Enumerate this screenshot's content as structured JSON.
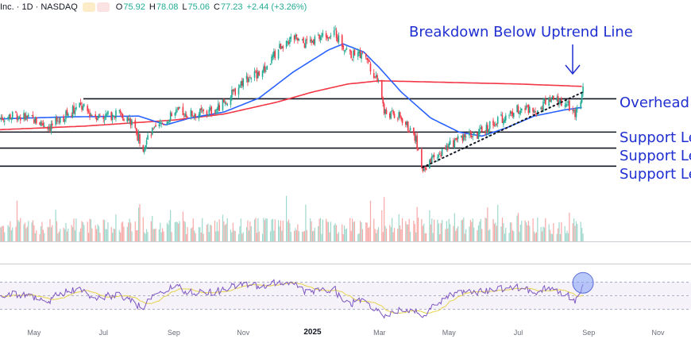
{
  "header": {
    "symbol": "Inc. · 1D · NASDAQ",
    "open_label": "O",
    "open": "75.92",
    "high_label": "H",
    "high": "78.08",
    "low_label": "L",
    "low": "75.06",
    "close_label": "C",
    "close": "77.23",
    "change": "+2.44 (+3.26%)"
  },
  "annotations": {
    "title": "Breakdown Below Uptrend Line",
    "overhead": "Overhead",
    "support1": "Support Le",
    "support2": "Support Le",
    "support3": "Support Le"
  },
  "colors": {
    "up": "#22ab94",
    "down": "#f23645",
    "ma_fast": "#2962ff",
    "ma_slow": "#f23645",
    "annotation": "#1f2fd1",
    "rsi": "#7e57c2",
    "rsi_ma": "#e6d34a",
    "volume_up": "#9fd8cc",
    "volume_down": "#f7a9a7"
  },
  "chart_data": {
    "type": "candlestick",
    "x_axis": {
      "ticks": [
        "May",
        "Jul",
        "Sep",
        "Nov",
        "2025",
        "Mar",
        "May",
        "Jul",
        "Sep",
        "Nov"
      ],
      "range": [
        "2024-04-01",
        "2025-11-30"
      ]
    },
    "price": {
      "ylim": [
        54,
        96
      ],
      "anchors": [
        [
          "2024-04-01",
          70.5
        ],
        [
          "2024-04-15",
          71.2
        ],
        [
          "2024-05-01",
          70.0
        ],
        [
          "2024-05-15",
          68.3
        ],
        [
          "2024-06-01",
          71.8
        ],
        [
          "2024-06-10",
          73.5
        ],
        [
          "2024-06-20",
          71.5
        ],
        [
          "2024-07-01",
          70.8
        ],
        [
          "2024-07-15",
          71.8
        ],
        [
          "2024-07-25",
          69.5
        ],
        [
          "2024-08-05",
          63.5
        ],
        [
          "2024-08-12",
          66.5
        ],
        [
          "2024-08-25",
          70.0
        ],
        [
          "2024-09-05",
          72.0
        ],
        [
          "2024-09-15",
          71.5
        ],
        [
          "2024-09-30",
          71.8
        ],
        [
          "2024-10-10",
          73.0
        ],
        [
          "2024-10-20",
          75.5
        ],
        [
          "2024-11-01",
          80.0
        ],
        [
          "2024-11-20",
          82.5
        ],
        [
          "2024-12-05",
          89.0
        ],
        [
          "2024-12-15",
          90.5
        ],
        [
          "2024-12-25",
          89.0
        ],
        [
          "2025-01-10",
          91.0
        ],
        [
          "2025-01-20",
          92.0
        ],
        [
          "2025-01-28",
          88.5
        ],
        [
          "2025-02-05",
          86.0
        ],
        [
          "2025-02-15",
          87.0
        ],
        [
          "2025-02-25",
          81.0
        ],
        [
          "2025-03-01",
          80.5
        ],
        [
          "2025-03-05",
          72.0
        ],
        [
          "2025-03-20",
          70.5
        ],
        [
          "2025-04-01",
          66.0
        ],
        [
          "2025-04-08",
          58.2
        ],
        [
          "2025-04-15",
          59.5
        ],
        [
          "2025-04-25",
          62.0
        ],
        [
          "2025-05-05",
          64.5
        ],
        [
          "2025-05-15",
          66.5
        ],
        [
          "2025-05-25",
          66.0
        ],
        [
          "2025-06-05",
          68.5
        ],
        [
          "2025-06-20",
          71.0
        ],
        [
          "2025-07-01",
          73.0
        ],
        [
          "2025-07-15",
          72.5
        ],
        [
          "2025-07-25",
          74.5
        ],
        [
          "2025-08-01",
          75.0
        ],
        [
          "2025-08-12",
          74.0
        ],
        [
          "2025-08-20",
          71.5
        ],
        [
          "2025-08-27",
          77.2
        ]
      ],
      "ma_fast_anchors": [
        [
          "2024-04-01",
          70.3
        ],
        [
          "2024-06-01",
          70.8
        ],
        [
          "2024-08-01",
          71.0
        ],
        [
          "2024-08-25",
          68.8
        ],
        [
          "2024-09-15",
          70.5
        ],
        [
          "2024-10-15",
          72.0
        ],
        [
          "2024-11-15",
          75.5
        ],
        [
          "2024-12-15",
          82.0
        ],
        [
          "2025-01-15",
          87.5
        ],
        [
          "2025-01-28",
          89.0
        ],
        [
          "2025-02-15",
          87.0
        ],
        [
          "2025-03-01",
          83.0
        ],
        [
          "2025-03-20",
          77.0
        ],
        [
          "2025-04-15",
          70.5
        ],
        [
          "2025-05-10",
          67.0
        ],
        [
          "2025-05-30",
          66.0
        ],
        [
          "2025-06-20",
          68.0
        ],
        [
          "2025-07-15",
          71.0
        ],
        [
          "2025-08-10",
          72.5
        ],
        [
          "2025-08-27",
          73.2
        ]
      ],
      "ma_slow_anchors": [
        [
          "2024-04-01",
          67.6
        ],
        [
          "2024-06-15",
          68.5
        ],
        [
          "2024-09-01",
          70.0
        ],
        [
          "2024-10-15",
          71.5
        ],
        [
          "2024-12-01",
          74.5
        ],
        [
          "2025-01-01",
          77.0
        ],
        [
          "2025-02-01",
          79.0
        ],
        [
          "2025-03-01",
          79.8
        ],
        [
          "2025-05-01",
          79.4
        ],
        [
          "2025-07-01",
          79.0
        ],
        [
          "2025-08-27",
          78.4
        ]
      ]
    },
    "levels": [
      {
        "name": "Overhead",
        "value": 75.3
      },
      {
        "name": "Support Le",
        "value": 67.0
      },
      {
        "name": "Support Le",
        "value": 63.0
      },
      {
        "name": "Support Le",
        "value": 58.5
      }
    ],
    "uptrend_line": [
      [
        "2025-04-08",
        58.2
      ],
      [
        "2025-08-27",
        77.0
      ]
    ],
    "rsi": {
      "ylim": [
        18,
        82
      ],
      "levels": [
        70,
        50,
        30
      ]
    }
  }
}
